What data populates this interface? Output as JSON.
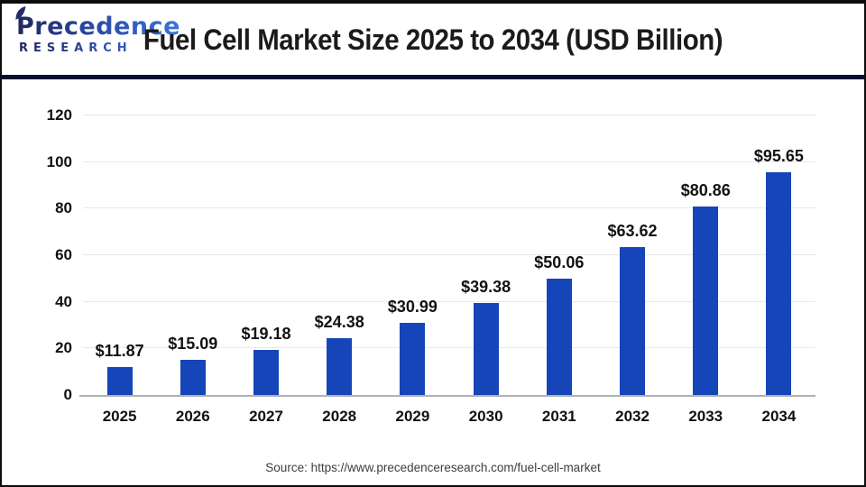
{
  "header": {
    "logo": {
      "line1": "Precedence",
      "line2": "RESEARCH"
    },
    "title": "Fuel Cell Market Size 2025 to 2034 (USD Billion)"
  },
  "chart_data": {
    "type": "bar",
    "title": "Fuel Cell Market Size 2025 to 2034 (USD Billion)",
    "categories": [
      "2025",
      "2026",
      "2027",
      "2028",
      "2029",
      "2030",
      "2031",
      "2032",
      "2033",
      "2034"
    ],
    "values": [
      11.87,
      15.09,
      19.18,
      24.38,
      30.99,
      39.38,
      50.06,
      63.62,
      80.86,
      95.65
    ],
    "value_labels": [
      "$11.87",
      "$15.09",
      "$19.18",
      "$24.38",
      "$30.99",
      "$39.38",
      "$50.06",
      "$63.62",
      "$80.86",
      "$95.65"
    ],
    "xlabel": "",
    "ylabel": "",
    "ylim": [
      0,
      120
    ],
    "yticks": [
      0,
      20,
      40,
      60,
      80,
      100,
      120
    ],
    "grid": true,
    "legend": false,
    "bar_color": "#1545b8",
    "gridline_color": "#e8e8e8",
    "axis_line_color": "#b2b2b2"
  },
  "footer": {
    "source": "Source: https://www.precedenceresearch.com/fuel-cell-market"
  }
}
